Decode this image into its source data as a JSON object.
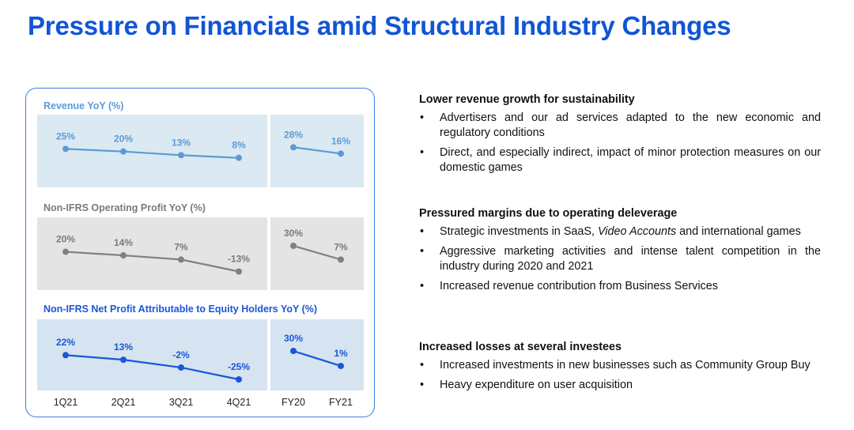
{
  "title": "Pressure on Financials amid Structural Industry Changes",
  "colors": {
    "title": "#1155d6",
    "revenue": "#5b9bd5",
    "op_profit": "#808080",
    "net_profit": "#1a56db",
    "revenue_bg": "#dbe9f3",
    "op_bg": "#e4e4e4",
    "net_bg": "#d5e4f0"
  },
  "chart_data": [
    {
      "type": "line",
      "title": "Revenue YoY (%)",
      "quarterly": {
        "categories": [
          "1Q21",
          "2Q21",
          "3Q21",
          "4Q21"
        ],
        "values": [
          25,
          20,
          13,
          8
        ],
        "labels": [
          "25%",
          "20%",
          "13%",
          "8%"
        ]
      },
      "annual": {
        "categories": [
          "FY20",
          "FY21"
        ],
        "values": [
          28,
          16
        ],
        "labels": [
          "28%",
          "16%"
        ]
      }
    },
    {
      "type": "line",
      "title": "Non-IFRS Operating Profit YoY (%)",
      "quarterly": {
        "categories": [
          "1Q21",
          "2Q21",
          "3Q21",
          "4Q21"
        ],
        "values": [
          20,
          14,
          7,
          -13
        ],
        "labels": [
          "20%",
          "14%",
          "7%",
          "-13%"
        ]
      },
      "annual": {
        "categories": [
          "FY20",
          "FY21"
        ],
        "values": [
          30,
          7
        ],
        "labels": [
          "30%",
          "7%"
        ]
      }
    },
    {
      "type": "line",
      "title": "Non-IFRS Net Profit Attributable to Equity Holders YoY (%)",
      "quarterly": {
        "categories": [
          "1Q21",
          "2Q21",
          "3Q21",
          "4Q21"
        ],
        "values": [
          22,
          13,
          -2,
          -25
        ],
        "labels": [
          "22%",
          "13%",
          "-2%",
          "-25%"
        ]
      },
      "annual": {
        "categories": [
          "FY20",
          "FY21"
        ],
        "values": [
          30,
          1
        ],
        "labels": [
          "30%",
          "1%"
        ]
      }
    }
  ],
  "x_axis_labels": [
    "1Q21",
    "2Q21",
    "3Q21",
    "4Q21",
    "FY20",
    "FY21"
  ],
  "sections": [
    {
      "heading": "Lower revenue growth for sustainability",
      "bullets": [
        "Advertisers and our ad services adapted to the new economic and regulatory conditions",
        "Direct, and especially indirect, impact of minor protection measures on our domestic games"
      ]
    },
    {
      "heading": "Pressured margins due to operating deleverage",
      "bullets": [
        "Strategic investments in SaaS, Video Accounts and international games",
        "Aggressive marketing activities and intense talent competition in the industry during 2020 and 2021",
        "Increased revenue contribution from Business Services"
      ]
    },
    {
      "heading": "Increased losses at several investees",
      "bullets": [
        "Increased investments in new businesses such as Community Group Buy",
        "Heavy expenditure on user acquisition"
      ]
    }
  ]
}
